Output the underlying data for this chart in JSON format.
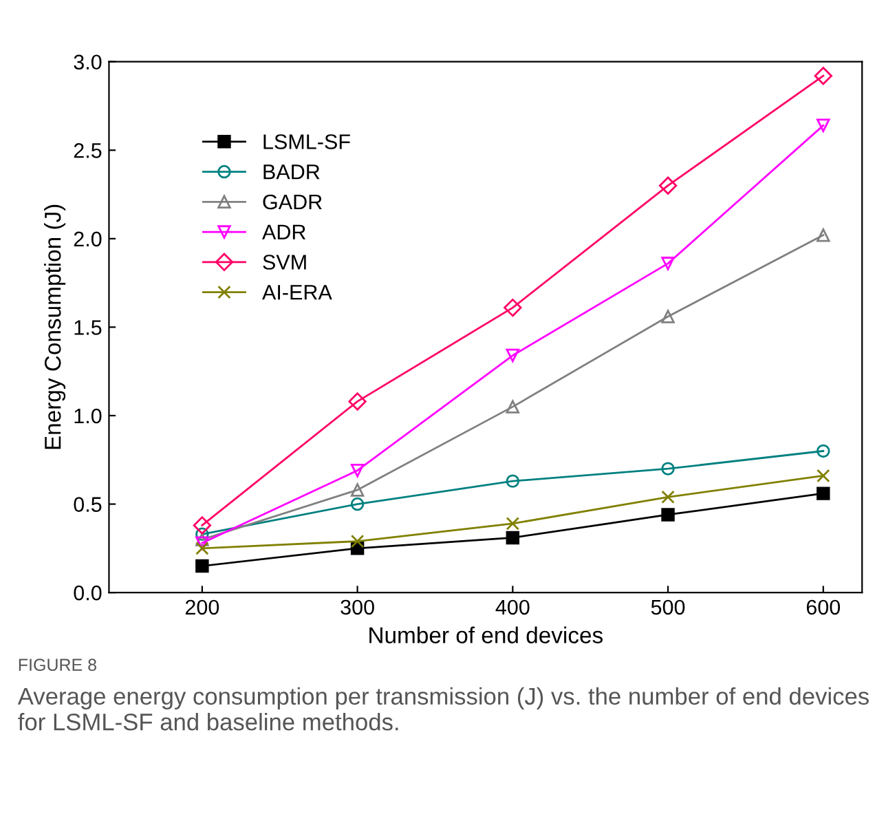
{
  "chart_data": {
    "type": "line",
    "xlabel": "Number of end devices",
    "ylabel": "Energy Consumption (J)",
    "x": [
      200,
      300,
      400,
      500,
      600
    ],
    "series": [
      {
        "name": "LSML-SF",
        "color": "#000000",
        "marker": "square",
        "values": [
          0.15,
          0.25,
          0.31,
          0.44,
          0.56
        ]
      },
      {
        "name": "BADR",
        "color": "#008080",
        "marker": "circle",
        "values": [
          0.33,
          0.5,
          0.63,
          0.7,
          0.8
        ]
      },
      {
        "name": "GADR",
        "color": "#808080",
        "marker": "triangle",
        "values": [
          0.3,
          0.58,
          1.05,
          1.56,
          2.02
        ]
      },
      {
        "name": "ADR",
        "color": "#ff00ff",
        "marker": "triangle_down",
        "values": [
          0.28,
          0.69,
          1.34,
          1.86,
          2.64
        ]
      },
      {
        "name": "SVM",
        "color": "#ff0066",
        "marker": "diamond",
        "values": [
          0.38,
          1.08,
          1.61,
          2.3,
          2.92
        ]
      },
      {
        "name": "AI-ERA",
        "color": "#808000",
        "marker": "cross",
        "values": [
          0.25,
          0.29,
          0.39,
          0.54,
          0.66
        ]
      }
    ],
    "xlim": [
      140,
      625
    ],
    "xticks": [
      200,
      300,
      400,
      500,
      600
    ],
    "ylim": [
      0,
      3.0
    ],
    "yticks": [
      {
        "value": 0,
        "label": "0.0"
      },
      0.5,
      {
        "value": 1,
        "label": "1.0"
      },
      1.5,
      {
        "value": 2,
        "label": "2.0"
      },
      2.5,
      {
        "value": 3,
        "label": "3.0"
      }
    ],
    "legend": "top left",
    "grid": false,
    "line_style": "solid",
    "annotations": [
      "FIGURE 8",
      "Average energy consumption per transmission (J) vs. the number of end devices for LSML-SF and baseline methods."
    ]
  }
}
